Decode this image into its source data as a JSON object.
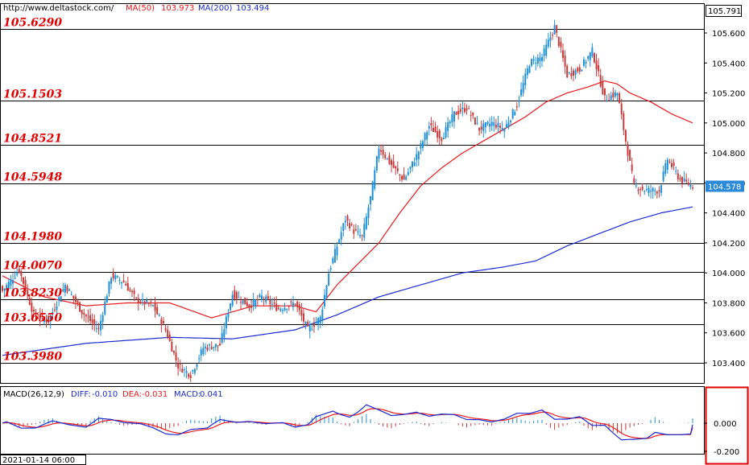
{
  "header": {
    "url": "http://www.deltastock.com/",
    "ma50_label": "MA(50)",
    "ma50_value": "103.973",
    "ma200_label": "MA(200)",
    "ma200_value": "103.494"
  },
  "macd_header": {
    "name": "MACD(26,12,9)",
    "diff_label": "DIFF:",
    "diff_value": "-0.010",
    "dea_label": "DEA:",
    "dea_value": "-0.031",
    "macd_label": "MACD:",
    "macd_value": "0.041"
  },
  "time_label": "2021-01-14 06:00",
  "colors": {
    "up": "#1f8fd6",
    "down": "#c83a3a",
    "ma50": "#e8191b",
    "ma200": "#1a2ad0",
    "level_text": "#e00000",
    "macd_diff": "#1a2ad0",
    "macd_dea": "#e8191b",
    "current_price_bg": "#2a8ad8"
  },
  "chart_data": [
    {
      "type": "candlestick",
      "ylim": [
        103.3,
        105.8
      ],
      "yticks": [
        "103.400",
        "103.600",
        "103.800",
        "104.000",
        "104.200",
        "104.400",
        "104.600",
        "104.800",
        "105.000",
        "105.200",
        "105.400",
        "105.600"
      ],
      "top_label": "105.791",
      "current_price": "104.578",
      "levels": [
        {
          "value": 105.629,
          "label": "105.6290"
        },
        {
          "value": 105.1503,
          "label": "105.1503"
        },
        {
          "value": 104.8521,
          "label": "104.8521"
        },
        {
          "value": 104.5948,
          "label": "104.5948"
        },
        {
          "value": 104.198,
          "label": "104.1980"
        },
        {
          "value": 104.007,
          "label": "104.0070"
        },
        {
          "value": 103.823,
          "label": "103.8230"
        },
        {
          "value": 103.655,
          "label": "103.6550"
        },
        {
          "value": 103.398,
          "label": "103.3980"
        }
      ],
      "close_anchors": [
        [
          0,
          103.88
        ],
        [
          8,
          104.02
        ],
        [
          15,
          103.72
        ],
        [
          22,
          103.68
        ],
        [
          30,
          103.92
        ],
        [
          38,
          103.74
        ],
        [
          46,
          103.62
        ],
        [
          52,
          103.98
        ],
        [
          58,
          103.94
        ],
        [
          64,
          103.82
        ],
        [
          72,
          103.78
        ],
        [
          78,
          103.62
        ],
        [
          84,
          103.38
        ],
        [
          90,
          103.32
        ],
        [
          96,
          103.5
        ],
        [
          104,
          103.52
        ],
        [
          110,
          103.86
        ],
        [
          118,
          103.78
        ],
        [
          124,
          103.84
        ],
        [
          132,
          103.76
        ],
        [
          140,
          103.8
        ],
        [
          146,
          103.62
        ],
        [
          152,
          103.7
        ],
        [
          156,
          104.0
        ],
        [
          160,
          104.18
        ],
        [
          164,
          104.36
        ],
        [
          168,
          104.28
        ],
        [
          172,
          104.24
        ],
        [
          176,
          104.5
        ],
        [
          180,
          104.84
        ],
        [
          186,
          104.72
        ],
        [
          192,
          104.62
        ],
        [
          198,
          104.78
        ],
        [
          204,
          104.98
        ],
        [
          210,
          104.9
        ],
        [
          216,
          105.06
        ],
        [
          222,
          105.1
        ],
        [
          228,
          104.96
        ],
        [
          234,
          105.0
        ],
        [
          240,
          104.96
        ],
        [
          246,
          105.12
        ],
        [
          252,
          105.4
        ],
        [
          258,
          105.44
        ],
        [
          264,
          105.64
        ],
        [
          270,
          105.32
        ],
        [
          276,
          105.36
        ],
        [
          282,
          105.48
        ],
        [
          288,
          105.16
        ],
        [
          294,
          105.2
        ],
        [
          298,
          104.88
        ],
        [
          302,
          104.58
        ],
        [
          308,
          104.55
        ],
        [
          314,
          104.55
        ],
        [
          318,
          104.76
        ],
        [
          324,
          104.62
        ],
        [
          330,
          104.58
        ]
      ],
      "ma50_anchors": [
        [
          0,
          103.98
        ],
        [
          20,
          103.84
        ],
        [
          40,
          103.78
        ],
        [
          60,
          103.8
        ],
        [
          80,
          103.8
        ],
        [
          100,
          103.7
        ],
        [
          120,
          103.78
        ],
        [
          140,
          103.78
        ],
        [
          150,
          103.74
        ],
        [
          160,
          103.92
        ],
        [
          170,
          104.06
        ],
        [
          180,
          104.2
        ],
        [
          190,
          104.4
        ],
        [
          200,
          104.58
        ],
        [
          210,
          104.7
        ],
        [
          220,
          104.8
        ],
        [
          230,
          104.88
        ],
        [
          240,
          104.96
        ],
        [
          250,
          105.04
        ],
        [
          260,
          105.14
        ],
        [
          270,
          105.2
        ],
        [
          280,
          105.24
        ],
        [
          288,
          105.28
        ],
        [
          294,
          105.26
        ],
        [
          300,
          105.2
        ],
        [
          310,
          105.14
        ],
        [
          320,
          105.06
        ],
        [
          330,
          105.0
        ]
      ],
      "ma200_anchors": [
        [
          0,
          103.45
        ],
        [
          40,
          103.53
        ],
        [
          80,
          103.57
        ],
        [
          110,
          103.56
        ],
        [
          140,
          103.62
        ],
        [
          160,
          103.72
        ],
        [
          180,
          103.84
        ],
        [
          200,
          103.92
        ],
        [
          220,
          104.0
        ],
        [
          240,
          104.04
        ],
        [
          255,
          104.08
        ],
        [
          270,
          104.18
        ],
        [
          285,
          104.26
        ],
        [
          300,
          104.34
        ],
        [
          315,
          104.4
        ],
        [
          330,
          104.44
        ]
      ]
    },
    {
      "type": "macd",
      "ylim": [
        -0.28,
        0.26
      ],
      "yticks": [
        "0.000",
        "-0.200"
      ],
      "values": {
        "diff": -0.01,
        "dea": -0.031,
        "macd": 0.041
      }
    }
  ]
}
